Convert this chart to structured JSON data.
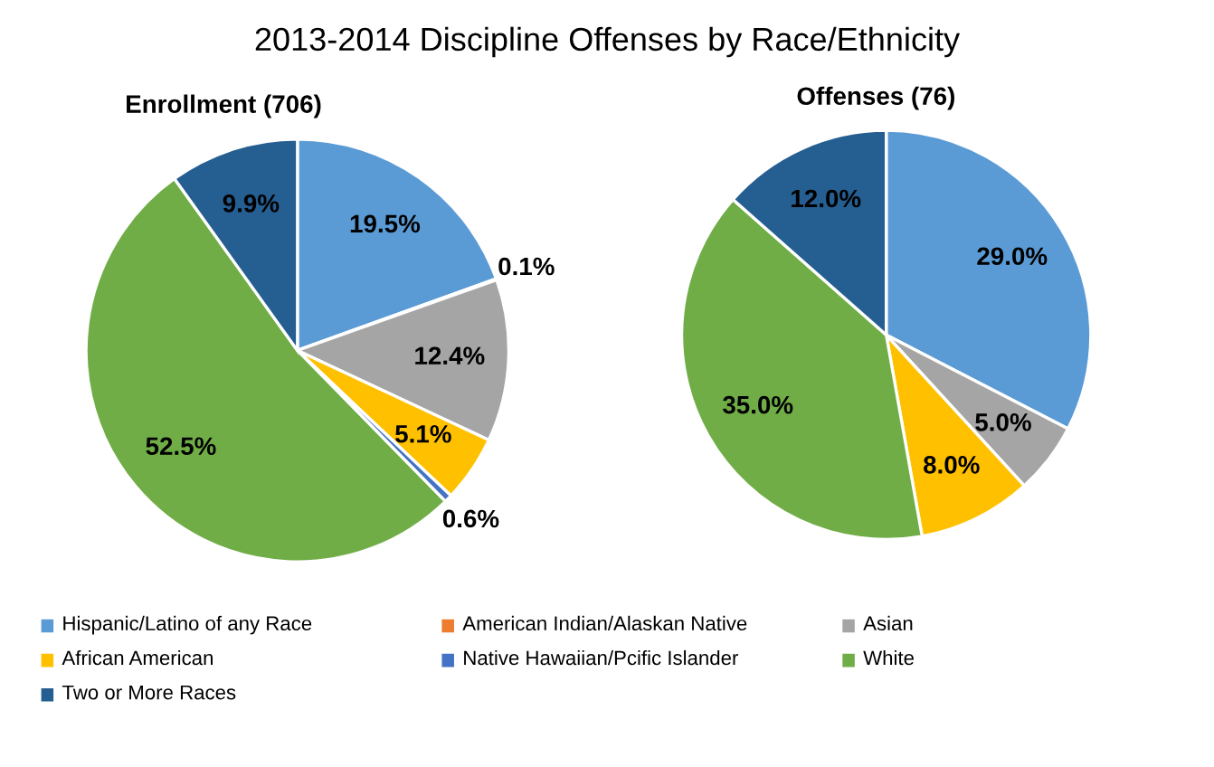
{
  "chart_data": [
    {
      "type": "pie",
      "title": "2013-2014 Discipline Offenses by Race/Ethnicity",
      "subtitle": "Enrollment (706)",
      "categories": [
        "Hispanic/Latino of any Race",
        "American Indian/Alaskan Native",
        "Asian",
        "African American",
        "Native Hawaiian/Pcific Islander",
        "White",
        "Two or More Races"
      ],
      "values": [
        19.5,
        0.1,
        12.4,
        5.1,
        0.6,
        52.5,
        9.9
      ],
      "colors": [
        "#5b9bd5",
        "#ed7d31",
        "#a5a5a5",
        "#ffc000",
        "#4472c4",
        "#70ad47",
        "#255e91"
      ],
      "value_labels": [
        "19.5%",
        "0.1%",
        "12.4%",
        "5.1%",
        "0.6%",
        "52.5%",
        "9.9%"
      ],
      "legend": "bottom"
    },
    {
      "type": "pie",
      "subtitle": "Offenses (76)",
      "categories": [
        null,
        null,
        null,
        null,
        null
      ],
      "values": [
        29.0,
        5.0,
        8.0,
        35.0,
        12.0
      ],
      "colors": [
        "#5b9bd5",
        "#a5a5a5",
        "#ffc000",
        "#70ad47",
        "#255e91"
      ],
      "value_labels": [
        "29.0%",
        "5.0%",
        "8.0%",
        "35.0%",
        "12.0%"
      ]
    }
  ]
}
